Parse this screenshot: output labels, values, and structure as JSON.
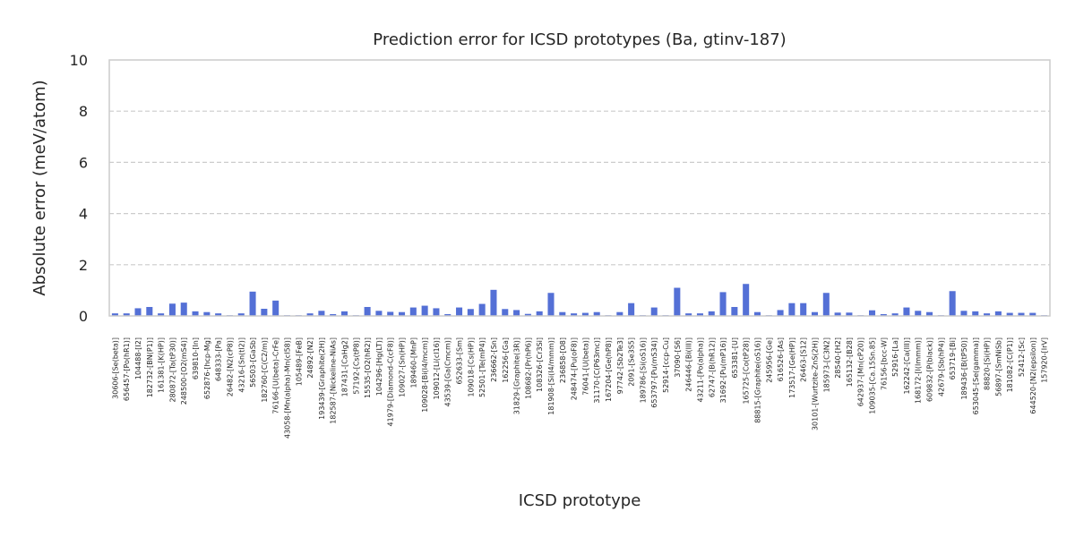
{
  "chart_data": {
    "type": "bar",
    "title": "Prediction error for ICSD prototypes (Ba, gtinv-187)",
    "xlabel": "ICSD prototype",
    "ylabel": "Absolute error (meV/atom)",
    "ylim": [
      0,
      10
    ],
    "yticks": [
      0,
      2,
      4,
      6,
      8,
      10
    ],
    "grid": "y-dashed",
    "bar_color": "#5470d6",
    "grid_color": "#cccccc",
    "categories": [
      "30606-[Se(beta)]",
      "656457-[Po(hR1)]",
      "104488-[I2]",
      "182732-[BN(P1)]",
      "161381-[K(HP)]",
      "280872-[Ta(tP30)]",
      "248500-[O2(mS4)]",
      "639810-[In]",
      "652876-[hcp-Mg]",
      "648333-[Pa]",
      "26482-[N2(cP8)]",
      "43216-[Sn(tI2)]",
      "56503-[GaSb]",
      "182760-[C(C2/m)]",
      "76166-[U(beta)-CrFe]",
      "43058-[Mn(alpha)-Mn(cI58)]",
      "105489-[FeB]",
      "24892-[N2]",
      "193439-[Graphite(2H)]",
      "182587-[Nickeline-NiAs]",
      "187431-[CaHg2]",
      "57192-[Cs(tP8)]",
      "15535-[O2(hR2)]",
      "104296-[Hg(LT)]",
      "41979-[Diamond-C(cF8)]",
      "109027-[Sn(HP)]",
      "189460-[MnP]",
      "109028-[Bi(I4/mcm)]",
      "109012-[Li(cI16)]",
      "43539-[Ga(Cmcm)]",
      "652633-[Sm]",
      "109018-[Cs(HP)]",
      "52501-[Te(mP4)]",
      "236662-[Sn]",
      "162256-[Ga]",
      "31829-[Graphite(3R)]",
      "108682-[Pr(hP6)]",
      "108326-[Cr3Si]",
      "181908-[Si(I4/mmm)]",
      "236858-[O8]",
      "248474-[Pu(oF8)]",
      "76041-[U(beta)]",
      "31170-[C(P63mc)]",
      "167204-[Ge(hP8)]",
      "97742-[Sb2Te3]",
      "2091-[Se3S5]",
      "189786-[Si(oS16)]",
      "653797-[Pu(mS34)]",
      "52914-[ccp-Cu]",
      "37090-[S6]",
      "246446-[Bi(III)]",
      "43211-[Po(alpha)]",
      "62747-[B(hR12)]",
      "31692-[Pu(mP16)]",
      "653381-[U]",
      "165725-[Co(tP28)]",
      "88815-[Graphite(oS16)]",
      "245956-[Ge]",
      "616526-[As]",
      "173517-[Ge(HP)]",
      "26463-[S12]",
      "30101-[Wurtzite-ZnS(2H)]",
      "185973-[C3N2]",
      "28540-[H2]",
      "165132-[B28]",
      "642937-[Mn(cP20)]",
      "109035-[Ca.15Sn.85]",
      "76156-[bcc-W]",
      "52916-[La]",
      "162242-[Ca(III)]",
      "168172-[I(Immm)]",
      "609832-[P(black)]",
      "42679-[Sb(hP4)]",
      "653719-[Bi]",
      "189436-[B(tP50)]",
      "653045-[Se(gamma)]",
      "88820-[Si(HP)]",
      "56897-[SmNiSb]",
      "181082-[C(P1)]",
      "52412-[Sc]",
      "644520-[N2(epsilon)]",
      "157920-[IrV]"
    ],
    "values": [
      0.1,
      0.1,
      0.3,
      0.35,
      0.1,
      0.48,
      0.52,
      0.18,
      0.15,
      0.1,
      0.03,
      0.1,
      0.95,
      0.28,
      0.6,
      0.03,
      0.03,
      0.1,
      0.2,
      0.07,
      0.18,
      0.03,
      0.35,
      0.2,
      0.16,
      0.15,
      0.33,
      0.4,
      0.3,
      0.07,
      0.33,
      0.27,
      0.47,
      1.02,
      0.27,
      0.23,
      0.08,
      0.18,
      0.9,
      0.15,
      0.1,
      0.12,
      0.15,
      0.03,
      0.15,
      0.5,
      0.03,
      0.33,
      0.03,
      1.1,
      0.1,
      0.1,
      0.18,
      0.93,
      0.35,
      1.25,
      0.15,
      0.03,
      0.23,
      0.5,
      0.5,
      0.15,
      0.9,
      0.13,
      0.13,
      0.03,
      0.22,
      0.07,
      0.1,
      0.33,
      0.2,
      0.15,
      0.03,
      0.97,
      0.2,
      0.18,
      0.1,
      0.18,
      0.12,
      0.12,
      0.12,
      0.03
    ]
  }
}
